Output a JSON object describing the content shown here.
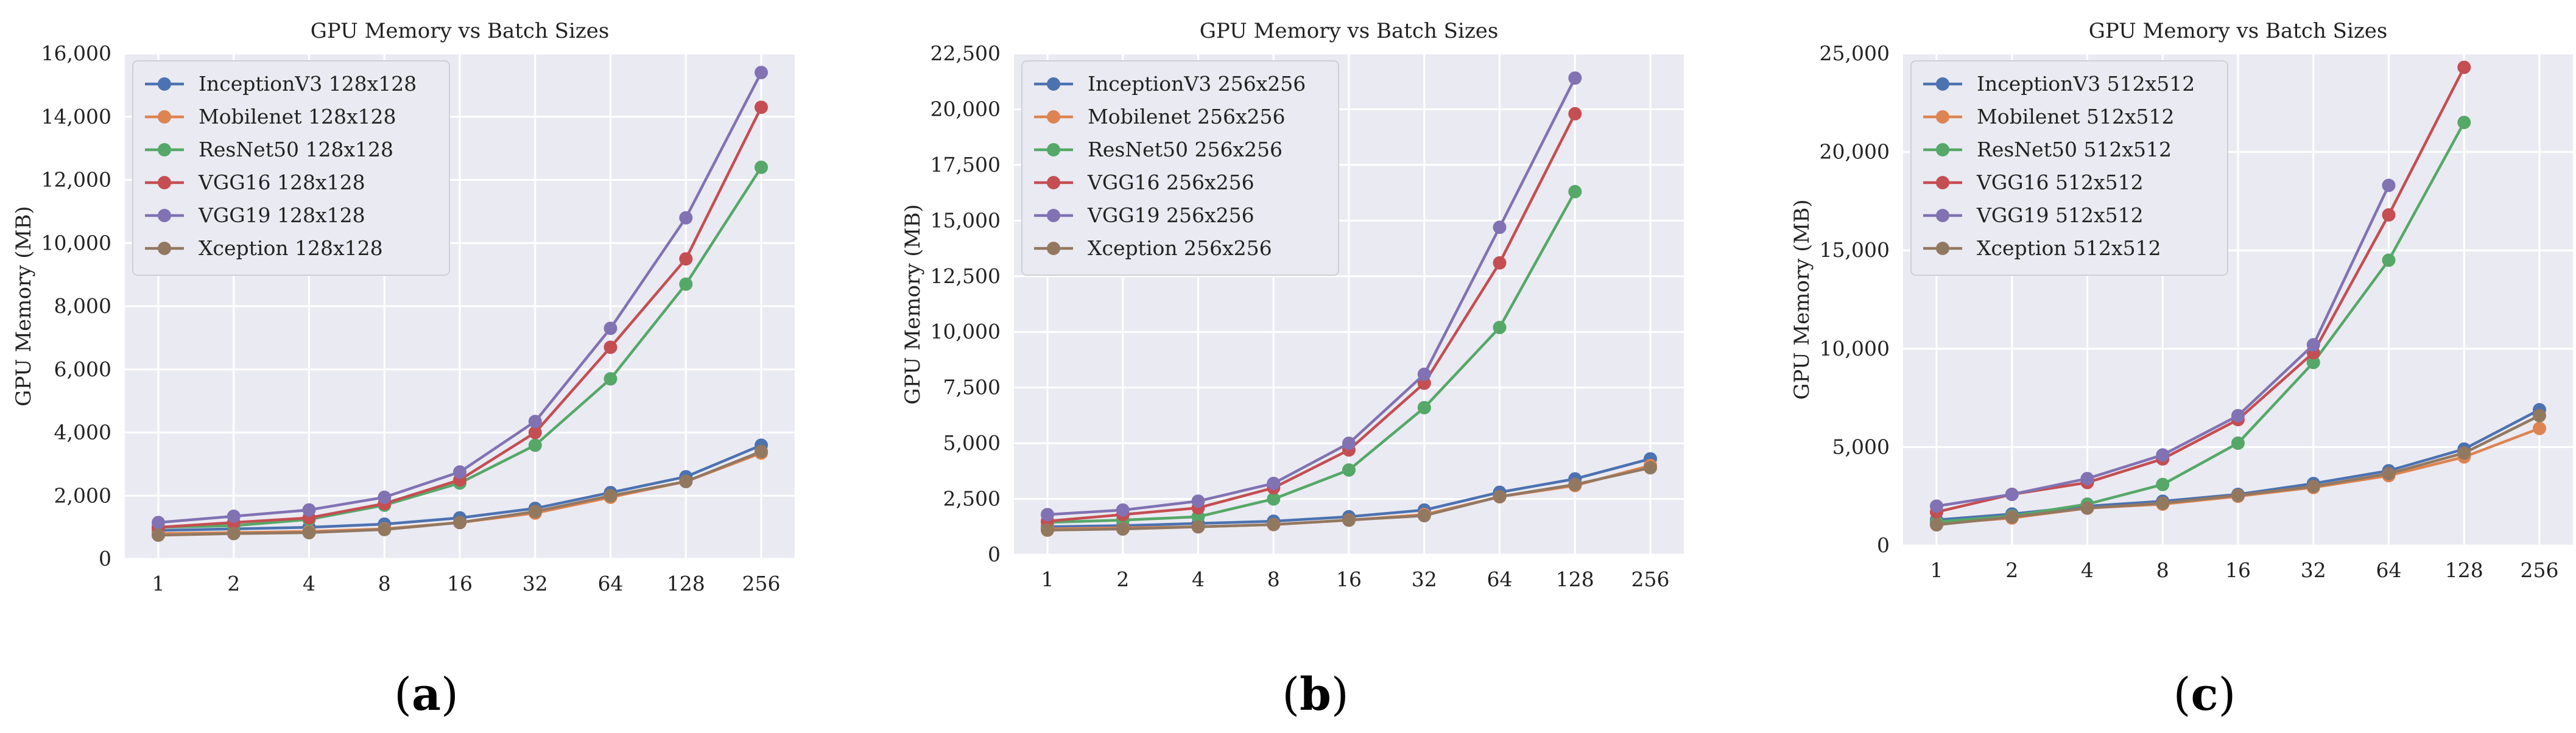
{
  "figure": {
    "panel_labels": [
      "a",
      "b",
      "c"
    ]
  },
  "colors": {
    "InceptionV3": "#4c72b0",
    "Mobilenet": "#dd8452",
    "ResNet50": "#55a868",
    "VGG16": "#c44e52",
    "VGG19": "#8172b3",
    "Xception": "#937860"
  },
  "chart_data": [
    {
      "type": "line",
      "title": "GPU Memory vs Batch Sizes",
      "xlabel": "",
      "ylabel": "GPU Memory (MB)",
      "categories": [
        "1",
        "2",
        "4",
        "8",
        "16",
        "32",
        "64",
        "128",
        "256"
      ],
      "ylim": [
        0,
        16000
      ],
      "yticks": [
        0,
        2000,
        4000,
        6000,
        8000,
        10000,
        12000,
        14000,
        16000
      ],
      "ytick_labels": [
        "0",
        "2,000",
        "4,000",
        "6,000",
        "8,000",
        "10,000",
        "12,000",
        "14,000",
        "16,000"
      ],
      "grid": true,
      "legend": "top-left",
      "series": [
        {
          "name": "InceptionV3 128x128",
          "model": "InceptionV3",
          "values": [
            900,
            950,
            1000,
            1100,
            1300,
            1600,
            2100,
            2600,
            3600
          ]
        },
        {
          "name": "Mobilenet 128x128",
          "model": "Mobilenet",
          "values": [
            800,
            830,
            870,
            950,
            1150,
            1450,
            1950,
            2450,
            3350
          ]
        },
        {
          "name": "ResNet50 128x128",
          "model": "ResNet50",
          "values": [
            1000,
            1050,
            1250,
            1700,
            2400,
            3600,
            5700,
            8700,
            12400
          ]
        },
        {
          "name": "VGG16 128x128",
          "model": "VGG16",
          "values": [
            1000,
            1150,
            1300,
            1750,
            2500,
            4000,
            6700,
            9500,
            14300
          ]
        },
        {
          "name": "VGG19 128x128",
          "model": "VGG19",
          "values": [
            1150,
            1350,
            1550,
            1950,
            2750,
            4350,
            7300,
            10800,
            15400
          ]
        },
        {
          "name": "Xception 128x128",
          "model": "Xception",
          "values": [
            750,
            800,
            830,
            930,
            1150,
            1500,
            2000,
            2450,
            3400
          ]
        }
      ]
    },
    {
      "type": "line",
      "title": "GPU Memory vs Batch Sizes",
      "xlabel": "",
      "ylabel": "GPU Memory (MB)",
      "categories": [
        "1",
        "2",
        "4",
        "8",
        "16",
        "32",
        "64",
        "128",
        "256"
      ],
      "ylim": [
        0,
        22500
      ],
      "yticks": [
        0,
        2500,
        5000,
        7500,
        10000,
        12500,
        15000,
        17500,
        20000,
        22500
      ],
      "ytick_labels": [
        "0",
        "2,500",
        "5,000",
        "7,500",
        "10,000",
        "12,500",
        "15,000",
        "17,500",
        "20,000",
        "22,500"
      ],
      "grid": true,
      "legend": "top-left",
      "series": [
        {
          "name": "InceptionV3 256x256",
          "model": "InceptionV3",
          "values": [
            1250,
            1300,
            1400,
            1500,
            1700,
            2000,
            2800,
            3400,
            4300
          ]
        },
        {
          "name": "Mobilenet 256x256",
          "model": "Mobilenet",
          "values": [
            1150,
            1200,
            1250,
            1350,
            1550,
            1800,
            2600,
            3100,
            4000
          ]
        },
        {
          "name": "ResNet50 256x256",
          "model": "ResNet50",
          "values": [
            1450,
            1550,
            1700,
            2500,
            3800,
            6600,
            10200,
            16300,
            null
          ]
        },
        {
          "name": "VGG16 256x256",
          "model": "VGG16",
          "values": [
            1500,
            1800,
            2100,
            3000,
            4700,
            7700,
            13100,
            19800,
            null
          ]
        },
        {
          "name": "VGG19 256x256",
          "model": "VGG19",
          "values": [
            1800,
            2000,
            2400,
            3200,
            5000,
            8100,
            14700,
            21400,
            null
          ]
        },
        {
          "name": "Xception 256x256",
          "model": "Xception",
          "values": [
            1100,
            1150,
            1250,
            1350,
            1550,
            1750,
            2600,
            3150,
            3900
          ]
        }
      ]
    },
    {
      "type": "line",
      "title": "GPU Memory vs Batch Sizes",
      "xlabel": "",
      "ylabel": "GPU Memory (MB)",
      "categories": [
        "1",
        "2",
        "4",
        "8",
        "16",
        "32",
        "64",
        "128",
        "256"
      ],
      "ylim": [
        0,
        25000
      ],
      "yticks": [
        0,
        5000,
        10000,
        15000,
        20000,
        25000
      ],
      "ytick_labels": [
        "0",
        "5,000",
        "10,000",
        "15,000",
        "20,000",
        "25,000"
      ],
      "grid": true,
      "legend": "top-left",
      "series": [
        {
          "name": "InceptionV3 512x512",
          "model": "InceptionV3",
          "values": [
            1300,
            1600,
            2000,
            2250,
            2600,
            3150,
            3800,
            4900,
            6900
          ]
        },
        {
          "name": "Mobilenet 512x512",
          "model": "Mobilenet",
          "values": [
            1100,
            1400,
            1900,
            2100,
            2500,
            2950,
            3550,
            4500,
            5950
          ]
        },
        {
          "name": "ResNet50 512x512",
          "model": "ResNet50",
          "values": [
            1200,
            1500,
            2100,
            3100,
            5200,
            9300,
            14500,
            21500,
            null
          ]
        },
        {
          "name": "VGG16 512x512",
          "model": "VGG16",
          "values": [
            1700,
            2600,
            3200,
            4400,
            6400,
            9800,
            16800,
            24300,
            null
          ]
        },
        {
          "name": "VGG19 512x512",
          "model": "VGG19",
          "values": [
            2000,
            2600,
            3400,
            4600,
            6600,
            10200,
            18300,
            null,
            null
          ]
        },
        {
          "name": "Xception 512x512",
          "model": "Xception",
          "values": [
            1050,
            1450,
            1900,
            2150,
            2550,
            3000,
            3650,
            4700,
            6600
          ]
        }
      ]
    }
  ]
}
